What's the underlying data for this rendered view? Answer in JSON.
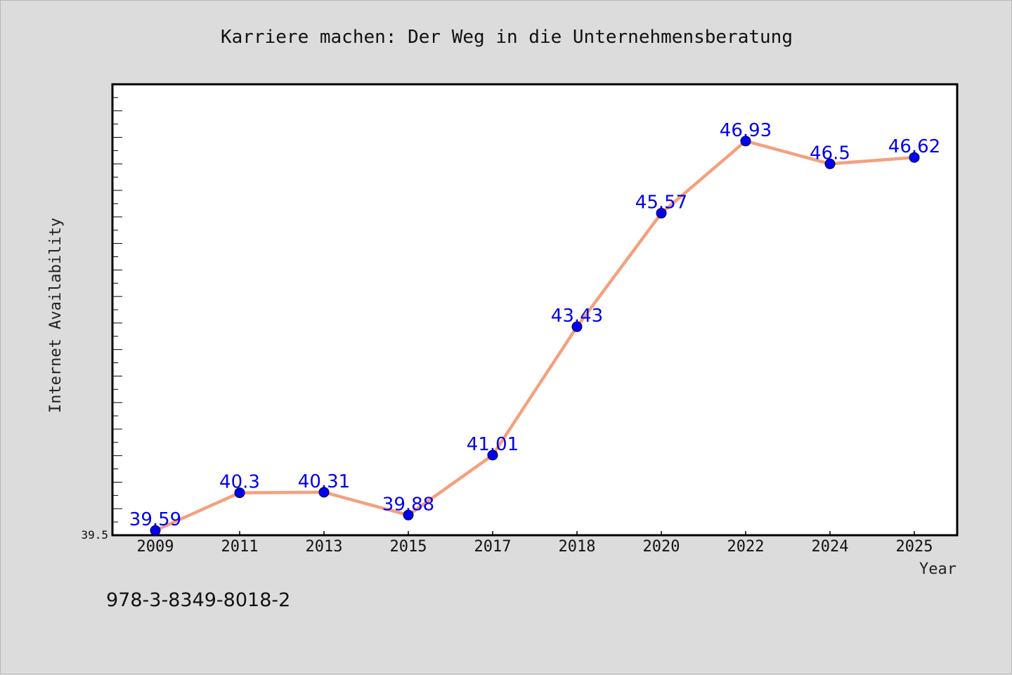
{
  "footer_text": "978-3-8349-8018-2",
  "colors": {
    "background": "#dcdcdc",
    "plot_background": "#ffffff",
    "line": "#f4a07e",
    "marker": "#0000ee",
    "data_label": "#0000ee",
    "frame": "#000000"
  },
  "chart_data": {
    "type": "line",
    "title": "Karriere machen: Der Weg in die Unternehmensberatung",
    "xlabel": "Year",
    "ylabel": "Internet Availability",
    "categories": [
      "2009",
      "2011",
      "2013",
      "2015",
      "2017",
      "2018",
      "2020",
      "2022",
      "2024",
      "2025"
    ],
    "series": [
      {
        "values": [
          39.59,
          40.3,
          40.31,
          39.88,
          41.01,
          43.43,
          45.57,
          46.93,
          46.5,
          46.62
        ],
        "labels": [
          "39.59",
          "40.3",
          "40.31",
          "39.88",
          "41.01",
          "43.43",
          "45.57",
          "46.93",
          "46.5",
          "46.62"
        ]
      }
    ],
    "ylim": [
      39.5,
      48.0
    ],
    "yticks": [
      "39.5"
    ],
    "grid": false,
    "legend": "none"
  }
}
